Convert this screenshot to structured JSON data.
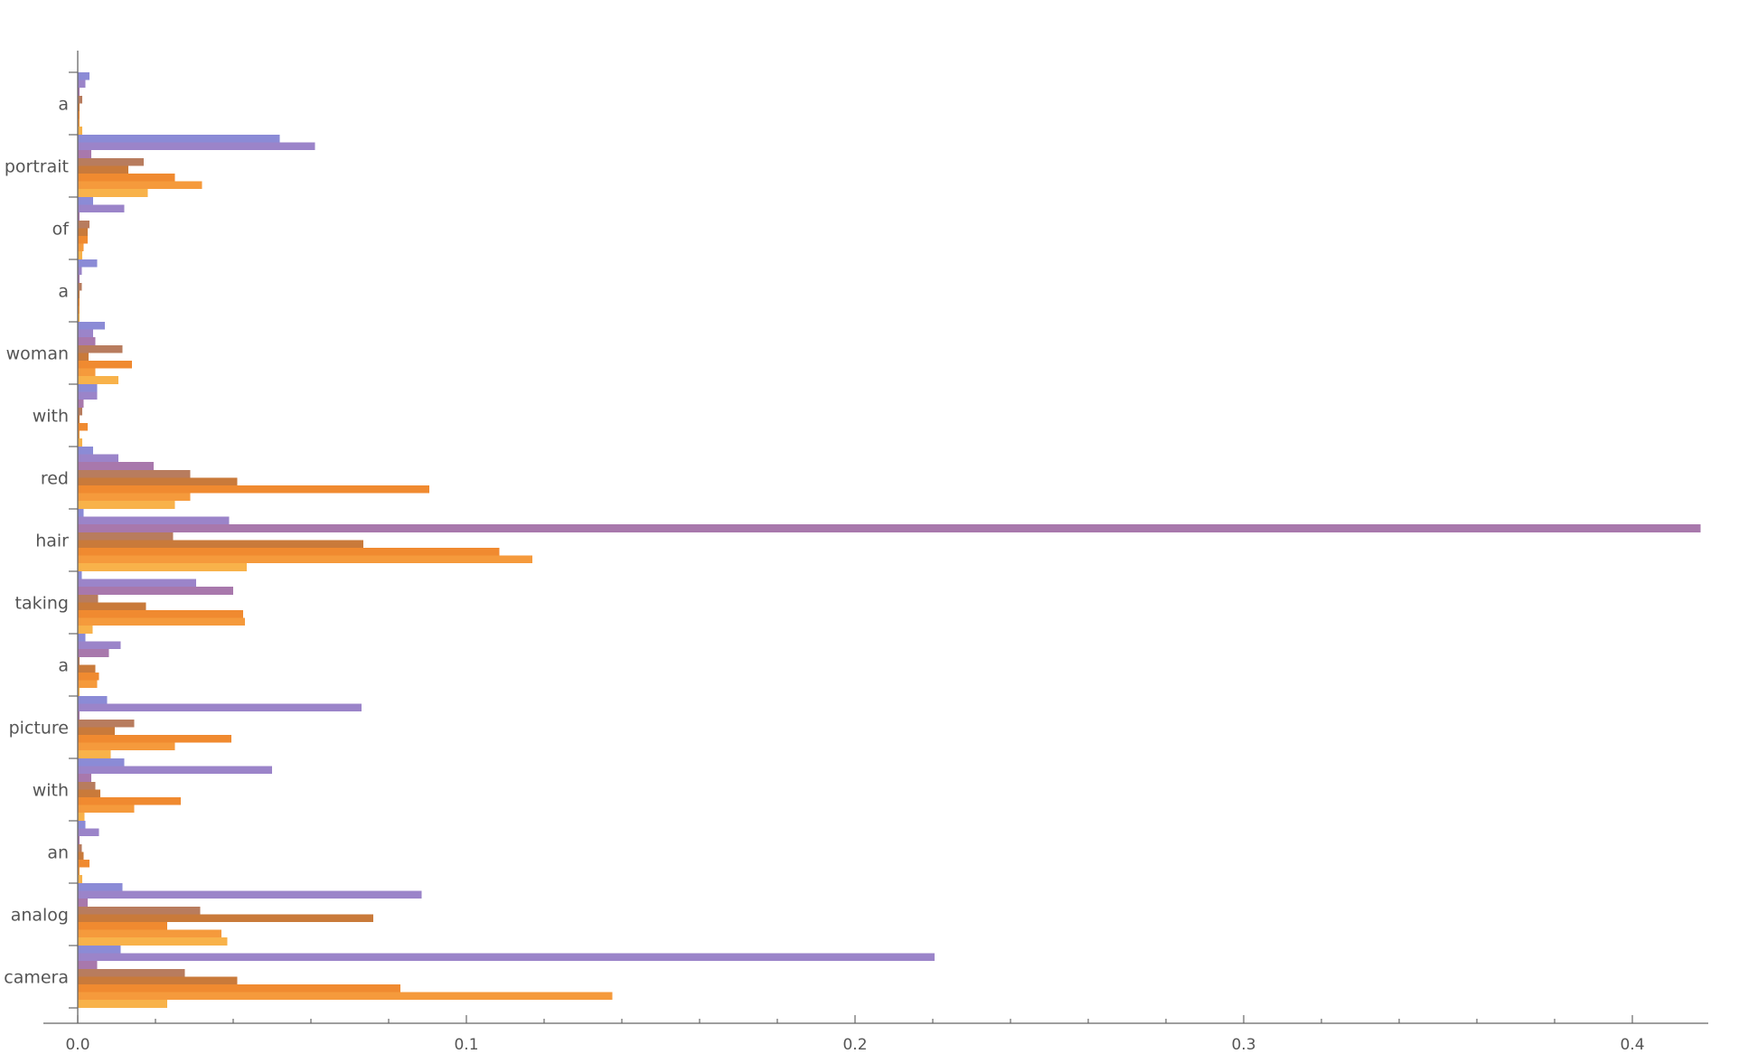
{
  "chart_data": {
    "type": "bar",
    "orientation": "horizontal",
    "title": "",
    "xlabel": "",
    "ylabel": "",
    "xlim": [
      0,
      0.42
    ],
    "x_ticks": [
      "0.0",
      "0.1",
      "0.2",
      "0.3",
      "0.4"
    ],
    "x_tick_values": [
      0,
      0.1,
      0.2,
      0.3,
      0.4
    ],
    "categories": [
      "a",
      "portrait",
      "of",
      "a",
      "woman",
      "with",
      "red",
      "hair",
      "taking",
      "a",
      "picture",
      "with",
      "an",
      "analog",
      "camera"
    ],
    "series": [
      {
        "color": "#8b8bd6",
        "values": [
          0.003,
          0.052,
          0.004,
          0.005,
          0.007,
          0.005,
          0.004,
          0.0015,
          0.001,
          0.002,
          0.0075,
          0.012,
          0.002,
          0.0115,
          0.011
        ]
      },
      {
        "color": "#9b84c9",
        "values": [
          0.002,
          0.061,
          0.012,
          0.001,
          0.004,
          0.005,
          0.0105,
          0.039,
          0.0305,
          0.011,
          0.073,
          0.05,
          0.0055,
          0.0885,
          0.2205
        ]
      },
      {
        "color": "#a878ac",
        "values": [
          0.0005,
          0.0035,
          0.0005,
          0.0005,
          0.0045,
          0.0015,
          0.0195,
          0.4175,
          0.04,
          0.008,
          0.0005,
          0.0035,
          0.0005,
          0.0025,
          0.005
        ]
      },
      {
        "color": "#b87c5e",
        "values": [
          0.0012,
          0.017,
          0.003,
          0.001,
          0.0115,
          0.0012,
          0.029,
          0.0245,
          0.0052,
          0.0005,
          0.0145,
          0.0045,
          0.001,
          0.0315,
          0.0275
        ]
      },
      {
        "color": "#c97a3a",
        "values": [
          0.0005,
          0.013,
          0.0025,
          0.0005,
          0.0028,
          0.0005,
          0.041,
          0.0735,
          0.0175,
          0.0045,
          0.0095,
          0.0058,
          0.0015,
          0.076,
          0.041
        ]
      },
      {
        "color": "#f08a30",
        "values": [
          0.0005,
          0.025,
          0.0025,
          0.0005,
          0.014,
          0.0025,
          0.0905,
          0.1085,
          0.0425,
          0.0055,
          0.0395,
          0.0265,
          0.003,
          0.023,
          0.083
        ]
      },
      {
        "color": "#f59a3c",
        "values": [
          0.0005,
          0.032,
          0.0015,
          0.0005,
          0.0045,
          0.0005,
          0.029,
          0.117,
          0.043,
          0.005,
          0.025,
          0.0145,
          0.0005,
          0.037,
          0.1375
        ]
      },
      {
        "color": "#f8b24a",
        "values": [
          0.0012,
          0.018,
          0.0012,
          0.0005,
          0.0105,
          0.0012,
          0.025,
          0.0435,
          0.0038,
          0.0005,
          0.0085,
          0.0018,
          0.0012,
          0.0385,
          0.023
        ]
      }
    ]
  }
}
